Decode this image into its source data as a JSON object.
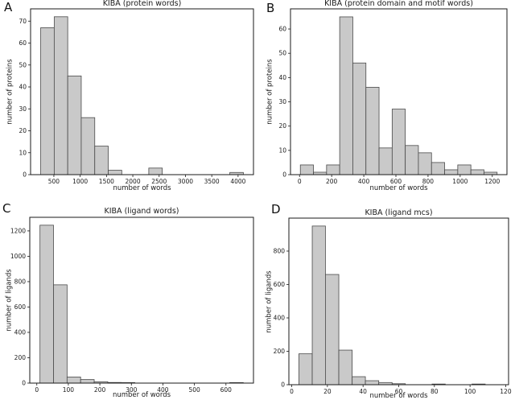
{
  "figure": {
    "background": "#ffffff"
  },
  "colors": {
    "bar_fill": "#c9c9c9",
    "bar_edge": "#4a4a4a",
    "axis": "#1a1a1a",
    "text": "#1a1a1a"
  },
  "chart_data": [
    {
      "type": "bar",
      "subtype": "histogram",
      "panel_label": "A",
      "title": "KIBA (protein words)",
      "xlabel": "number of words",
      "ylabel": "number of proteins",
      "bin_edges": [
        250.0,
        506.7,
        763.3,
        1020.0,
        1276.7,
        1533.3,
        1790.0,
        2046.7,
        2303.3,
        2560.0,
        2816.7,
        3073.3,
        3330.0,
        3586.7,
        3843.3,
        4100.0
      ],
      "counts": [
        67,
        72,
        45,
        26,
        13,
        2,
        0,
        0,
        3,
        0,
        0,
        0,
        0,
        0,
        1
      ],
      "xticks": [
        500,
        1000,
        1500,
        2000,
        2500,
        3000,
        3500,
        4000
      ],
      "yticks": [
        0,
        10,
        20,
        30,
        40,
        50,
        60,
        70
      ],
      "xlim": [
        57.5,
        4292.5
      ],
      "ylim": [
        0,
        75.6
      ],
      "grid": false,
      "legend": null
    },
    {
      "type": "bar",
      "subtype": "histogram",
      "panel_label": "B",
      "title": "KIBA (protein domain and motif words)",
      "xlabel": "number of words",
      "ylabel": "number of proteins",
      "bin_edges": [
        5.0,
        86.7,
        168.3,
        250.0,
        331.7,
        413.3,
        495.0,
        576.7,
        658.3,
        740.0,
        821.7,
        903.3,
        985.0,
        1066.7,
        1148.3,
        1230.0
      ],
      "counts": [
        4,
        1,
        4,
        65,
        46,
        36,
        11,
        27,
        12,
        9,
        5,
        2,
        4,
        2,
        1
      ],
      "xticks": [
        0,
        200,
        400,
        600,
        800,
        1000,
        1200
      ],
      "yticks": [
        0,
        10,
        20,
        30,
        40,
        50,
        60
      ],
      "xlim": [
        -56.3,
        1291.3
      ],
      "ylim": [
        0,
        68.3
      ],
      "grid": false,
      "legend": null
    },
    {
      "type": "bar",
      "subtype": "histogram",
      "panel_label": "C",
      "title": "KIBA (ligand words)",
      "xlabel": "number of words",
      "ylabel": "number of ligands",
      "bin_edges": [
        10,
        53,
        96,
        139,
        182,
        225,
        268,
        311,
        354,
        397,
        440,
        483,
        526,
        569,
        612,
        655
      ],
      "counts": [
        1245,
        775,
        48,
        28,
        11,
        5,
        4,
        0,
        0,
        0,
        0,
        0,
        0,
        0,
        4
      ],
      "xticks": [
        0,
        100,
        200,
        300,
        400,
        500,
        600
      ],
      "yticks": [
        0,
        200,
        400,
        600,
        800,
        1000,
        1200
      ],
      "xlim": [
        -22.3,
        687.3
      ],
      "ylim": [
        0,
        1307.3
      ],
      "grid": false,
      "legend": null
    },
    {
      "type": "bar",
      "subtype": "histogram",
      "panel_label": "D",
      "title": "KIBA (ligand mcs)",
      "xlabel": "number of words",
      "ylabel": "number of ligands",
      "bin_edges": [
        4.0,
        11.5,
        18.9,
        26.4,
        33.9,
        41.3,
        48.8,
        56.3,
        63.7,
        71.2,
        78.7,
        86.1,
        93.6,
        101.1,
        108.5,
        116.0
      ],
      "counts": [
        185,
        950,
        660,
        207,
        48,
        24,
        13,
        6,
        0,
        0,
        4,
        0,
        0,
        4,
        0
      ],
      "xticks": [
        0,
        20,
        40,
        60,
        80,
        100,
        120
      ],
      "yticks": [
        0,
        200,
        400,
        600,
        800
      ],
      "xlim": [
        -1.6,
        121.6
      ],
      "ylim": [
        0,
        997.5
      ],
      "grid": false,
      "legend": null
    }
  ]
}
